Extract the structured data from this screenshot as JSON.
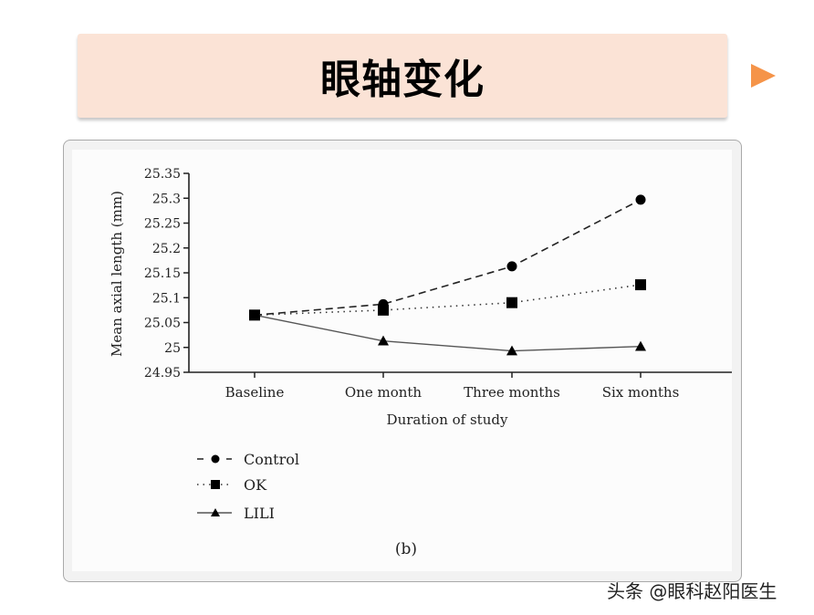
{
  "slide": {
    "title": "眼轴变化",
    "next_arrow_color": "#f59449",
    "banner_color": "#fbe3d6"
  },
  "figure": {
    "panel_label": "(b)"
  },
  "watermark": "头条 @眼科赵阳医生",
  "chart_data": {
    "type": "line",
    "title": "",
    "xlabel": "Duration of study",
    "ylabel": "Mean axial length (mm)",
    "categories": [
      "Baseline",
      "One month",
      "Three months",
      "Six months"
    ],
    "ylim": [
      24.95,
      25.35
    ],
    "yticks": [
      "25.35",
      "25.3",
      "25.25",
      "25.2",
      "25.15",
      "25.1",
      "25.05",
      "25",
      "24.95"
    ],
    "grid": false,
    "legend_position": "bottom-left",
    "series": [
      {
        "name": "Control",
        "marker": "circle",
        "line": "dashed",
        "values": [
          25.065,
          25.087,
          25.163,
          25.297
        ]
      },
      {
        "name": "OK",
        "marker": "square",
        "line": "dotted",
        "values": [
          25.065,
          25.075,
          25.09,
          25.126
        ]
      },
      {
        "name": "LILI",
        "marker": "triangle",
        "line": "solid",
        "values": [
          25.065,
          25.013,
          24.993,
          25.002
        ]
      }
    ]
  }
}
